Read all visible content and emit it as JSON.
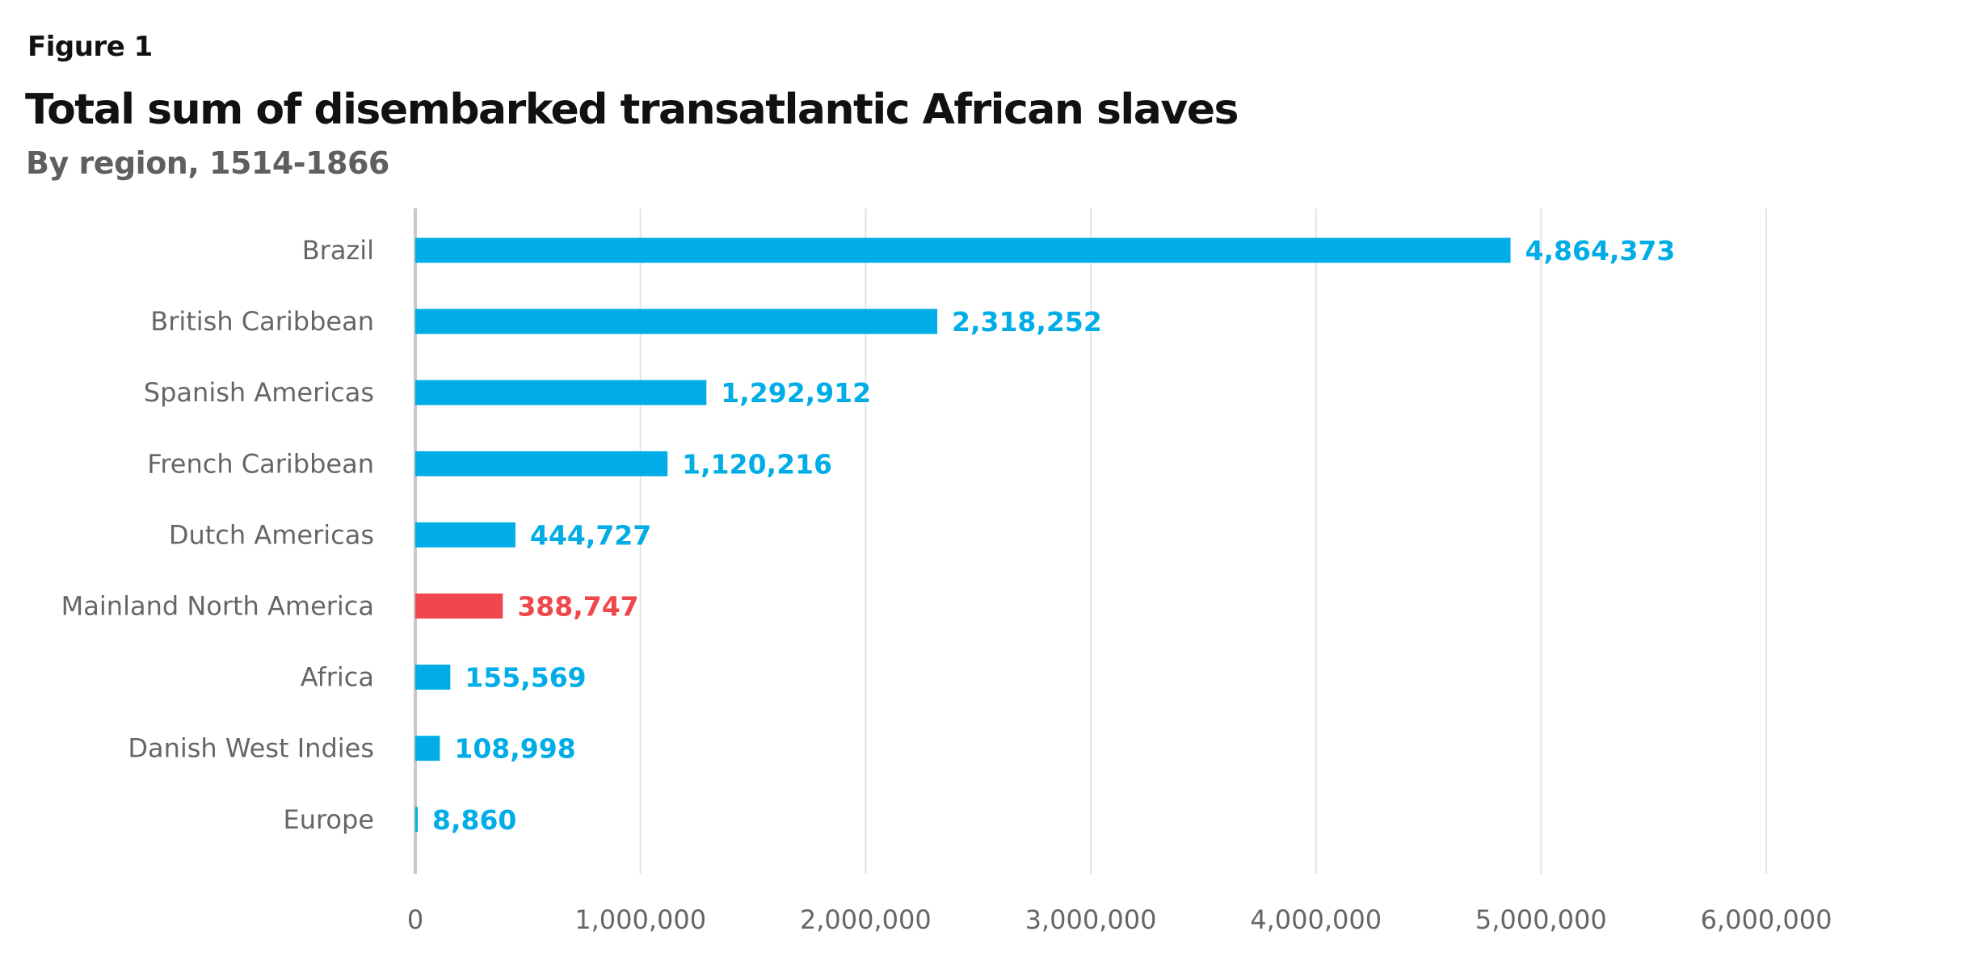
{
  "figure_label": "Figure 1",
  "title": "Total sum of disembarked transatlantic African slaves",
  "subtitle": "By region, 1514-1866",
  "colors": {
    "default_bar": "#00ade6",
    "highlight_bar": "#ef474b",
    "grid": "#e4e4e4",
    "axis": "#c8c8c8",
    "category_text": "#666666",
    "tick_text": "#666666"
  },
  "chart_data": {
    "type": "bar",
    "orientation": "horizontal",
    "categories": [
      "Brazil",
      "British Caribbean",
      "Spanish Americas",
      "French Caribbean",
      "Dutch Americas",
      "Mainland North America",
      "Africa",
      "Danish West Indies",
      "Europe"
    ],
    "values": [
      4864373,
      2318252,
      1292912,
      1120216,
      444727,
      388747,
      155569,
      108998,
      8860
    ],
    "value_labels": [
      "4,864,373",
      "2,318,252",
      "1,292,912",
      "1,120,216",
      "444,727",
      "388,747",
      "155,569",
      "108,998",
      "8,860"
    ],
    "highlight": [
      "Mainland North America"
    ],
    "xlim": [
      0,
      6000000
    ],
    "xticks": [
      0,
      1000000,
      2000000,
      3000000,
      4000000,
      5000000,
      6000000
    ],
    "xtick_labels": [
      "0",
      "1,000,000",
      "2,000,000",
      "3,000,000",
      "4,000,000",
      "5,000,000",
      "6,000,000"
    ],
    "grid": true,
    "legend": "none"
  }
}
